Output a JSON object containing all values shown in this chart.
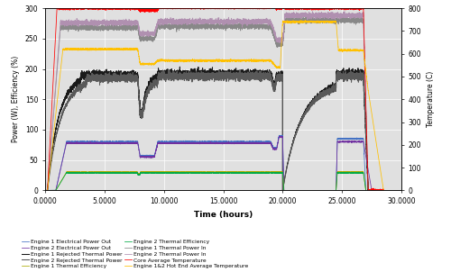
{
  "xlabel": "Time (hours)",
  "ylabel_left": "Power (W), Efficiency (%)",
  "ylabel_right": "Temperature (C)",
  "xlim": [
    0,
    30
  ],
  "ylim_left": [
    0,
    300
  ],
  "ylim_right": [
    0,
    800
  ],
  "xticks": [
    0.0,
    5.0,
    10.0,
    15.0,
    20.0,
    25.0,
    30.0
  ],
  "yticks_left": [
    0,
    50,
    100,
    150,
    200,
    250,
    300
  ],
  "yticks_right": [
    0,
    100,
    200,
    300,
    400,
    500,
    600,
    700,
    800
  ],
  "legend_entries": [
    {
      "label": "Engine 1 Electrical Power Out",
      "color": "#4472C4"
    },
    {
      "label": "Engine 2 Electrical Power Out",
      "color": "#7030A0"
    },
    {
      "label": "Engine 1 Rejected Thermal Power",
      "color": "#1a1a1a"
    },
    {
      "label": "Engine 2 Rejected Thermal Power",
      "color": "#595959"
    },
    {
      "label": "Engine 1 Thermal Efficiency",
      "color": "#AAAA00"
    },
    {
      "label": "Engine 2 Thermal Efficiency",
      "color": "#00AA44"
    },
    {
      "label": "Engine 1 Thermal Power In",
      "color": "#888888"
    },
    {
      "label": "Engine 2 Thermal Power In",
      "color": "#B090B0"
    },
    {
      "label": "Core Average Temperature",
      "color": "#FF0000"
    },
    {
      "label": "Engine 1&2 Hot End Average Temperature",
      "color": "#FFC000"
    }
  ],
  "bg_color": "#E0E0E0"
}
